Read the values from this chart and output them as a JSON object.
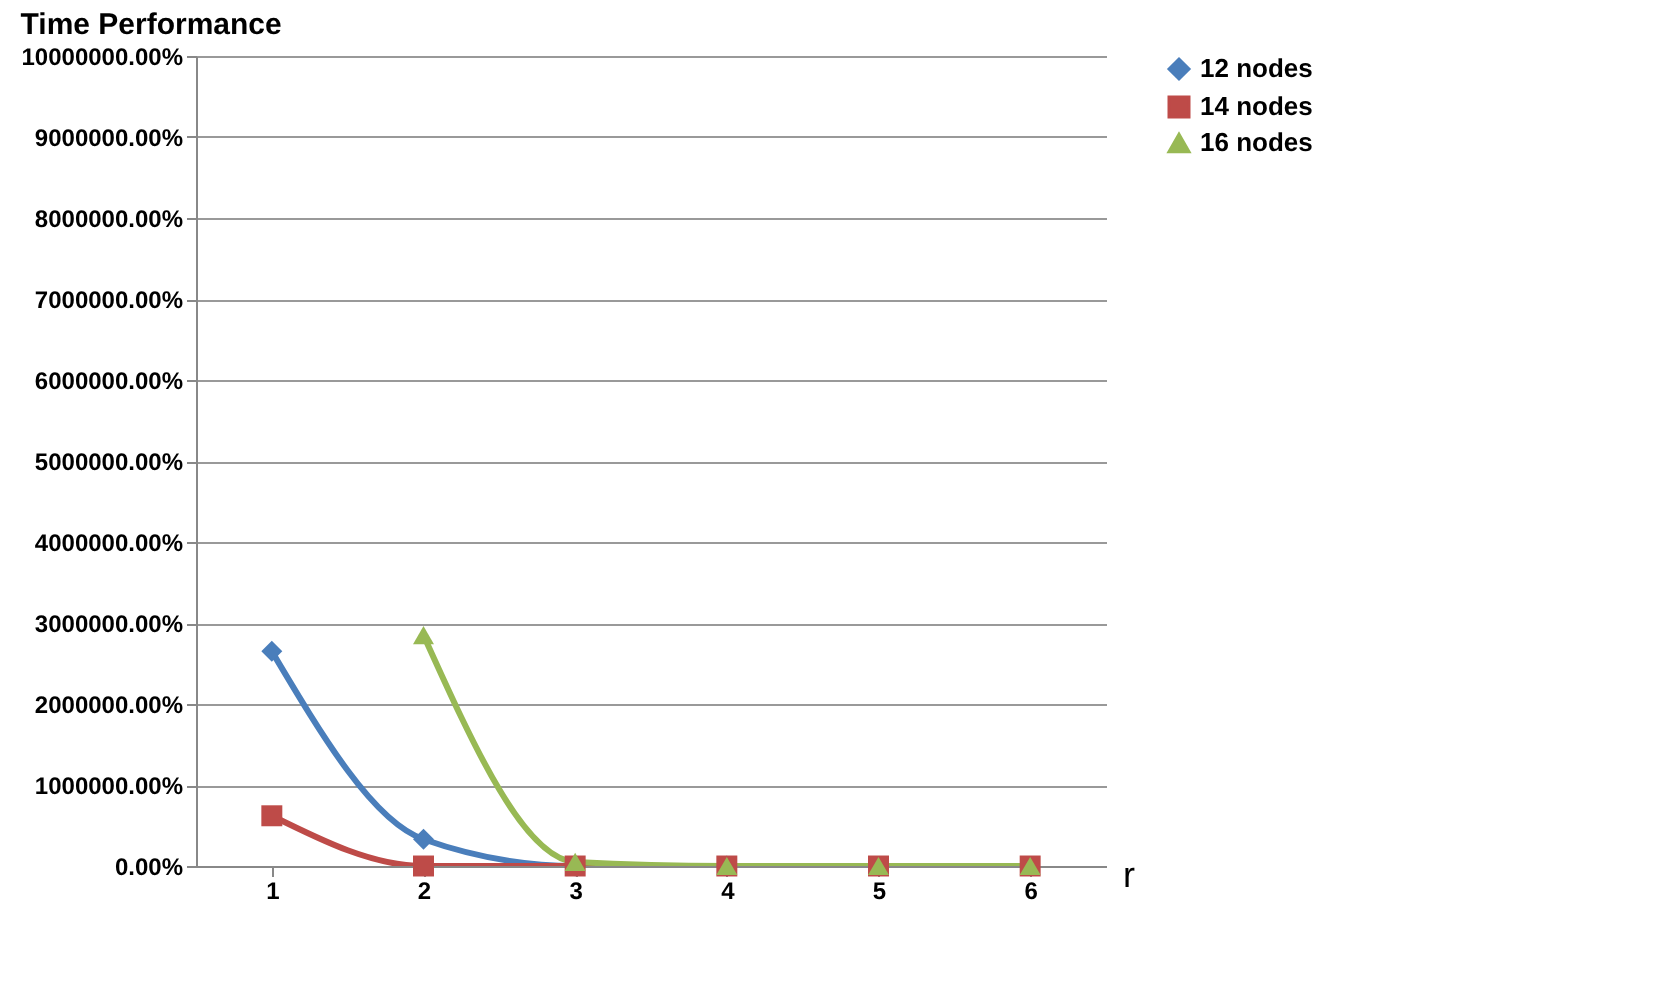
{
  "chart_data": {
    "type": "line",
    "title": "Time Performance",
    "xlabel": "r",
    "categories": [
      "1",
      "2",
      "3",
      "4",
      "5",
      "6"
    ],
    "series": [
      {
        "name": "12 nodes",
        "color": "#4a7ebb",
        "marker": "diamond",
        "values": [
          2650000,
          330000,
          0,
          0,
          null,
          null
        ]
      },
      {
        "name": "14 nodes",
        "color": "#be4b48",
        "marker": "square",
        "values": [
          620000,
          0,
          0,
          0,
          0,
          0
        ]
      },
      {
        "name": "16 nodes",
        "color": "#98b954",
        "marker": "triangle",
        "values": [
          null,
          2850000,
          50000,
          0,
          0,
          0
        ]
      }
    ],
    "ylim": [
      0,
      10000000
    ],
    "yticks": [
      {
        "value": 0,
        "label": "0.00%"
      },
      {
        "value": 1000000,
        "label": "1000000.00%"
      },
      {
        "value": 2000000,
        "label": "2000000.00%"
      },
      {
        "value": 3000000,
        "label": "3000000.00%"
      },
      {
        "value": 4000000,
        "label": "4000000.00%"
      },
      {
        "value": 5000000,
        "label": "5000000.00%"
      },
      {
        "value": 6000000,
        "label": "6000000.00%"
      },
      {
        "value": 7000000,
        "label": "7000000.00%"
      },
      {
        "value": 8000000,
        "label": "8000000.00%"
      },
      {
        "value": 9000000,
        "label": "9000000.00%"
      },
      {
        "value": 10000000,
        "label": "10000000.00%"
      }
    ],
    "grid": "y",
    "legend": "right"
  }
}
